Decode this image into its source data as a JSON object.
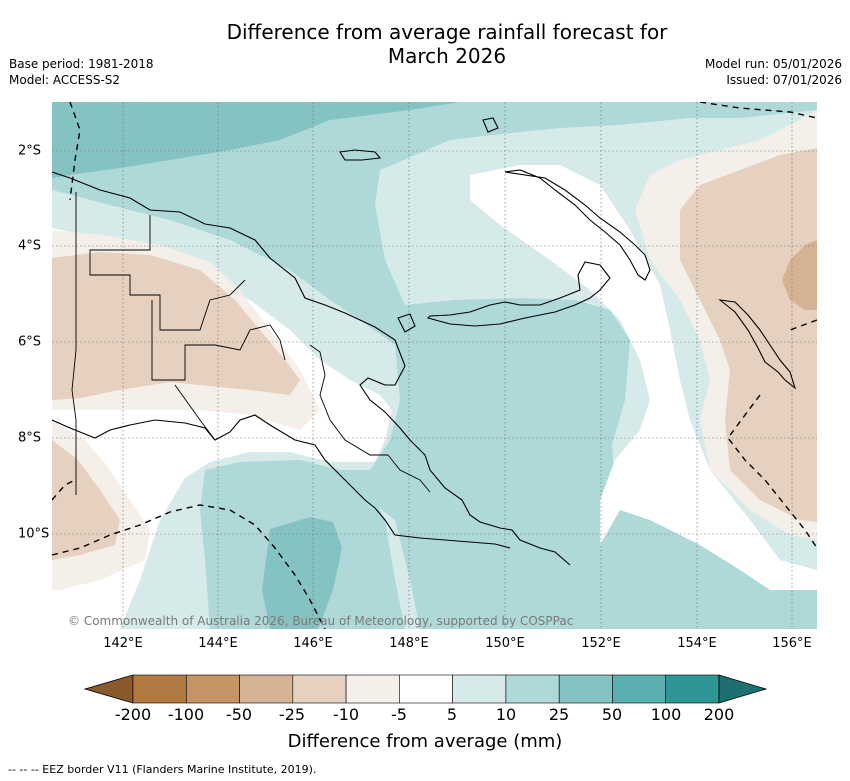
{
  "title_line1": "Difference from average rainfall forecast for",
  "title_line2": "March 2026",
  "base_period": "Base period: 1981-2018",
  "model": "Model: ACCESS-S2",
  "model_run": "Model run: 05/01/2026",
  "issued": "Issued: 07/01/2026",
  "map_region": "Papua New Guinea",
  "lon_ticks": [
    "142°E",
    "144°E",
    "146°E",
    "148°E",
    "150°E",
    "152°E",
    "154°E",
    "156°E"
  ],
  "lat_ticks": [
    "2°S",
    "4°S",
    "6°S",
    "8°S",
    "10°S"
  ],
  "copyright": "© Commonwealth of Australia 2026, Bureau of Meteorology, supported by COSPPac",
  "colorbar": {
    "labels": [
      "-200",
      "-100",
      "-50",
      "-25",
      "-10",
      "-5",
      "5",
      "10",
      "25",
      "50",
      "100",
      "200"
    ],
    "colors": [
      "#8a5a2b",
      "#b07a42",
      "#c49366",
      "#d6b295",
      "#e6d0bf",
      "#f4efe9",
      "#ffffff",
      "#d6eaea",
      "#afd8d8",
      "#85c3c3",
      "#5aaeae",
      "#2f9595",
      "#1e6f6f"
    ],
    "title": "Difference from average (mm)"
  },
  "legend_eez": "--  --  -- EEZ border V11 (Flanders Marine Institute, 2019)."
}
